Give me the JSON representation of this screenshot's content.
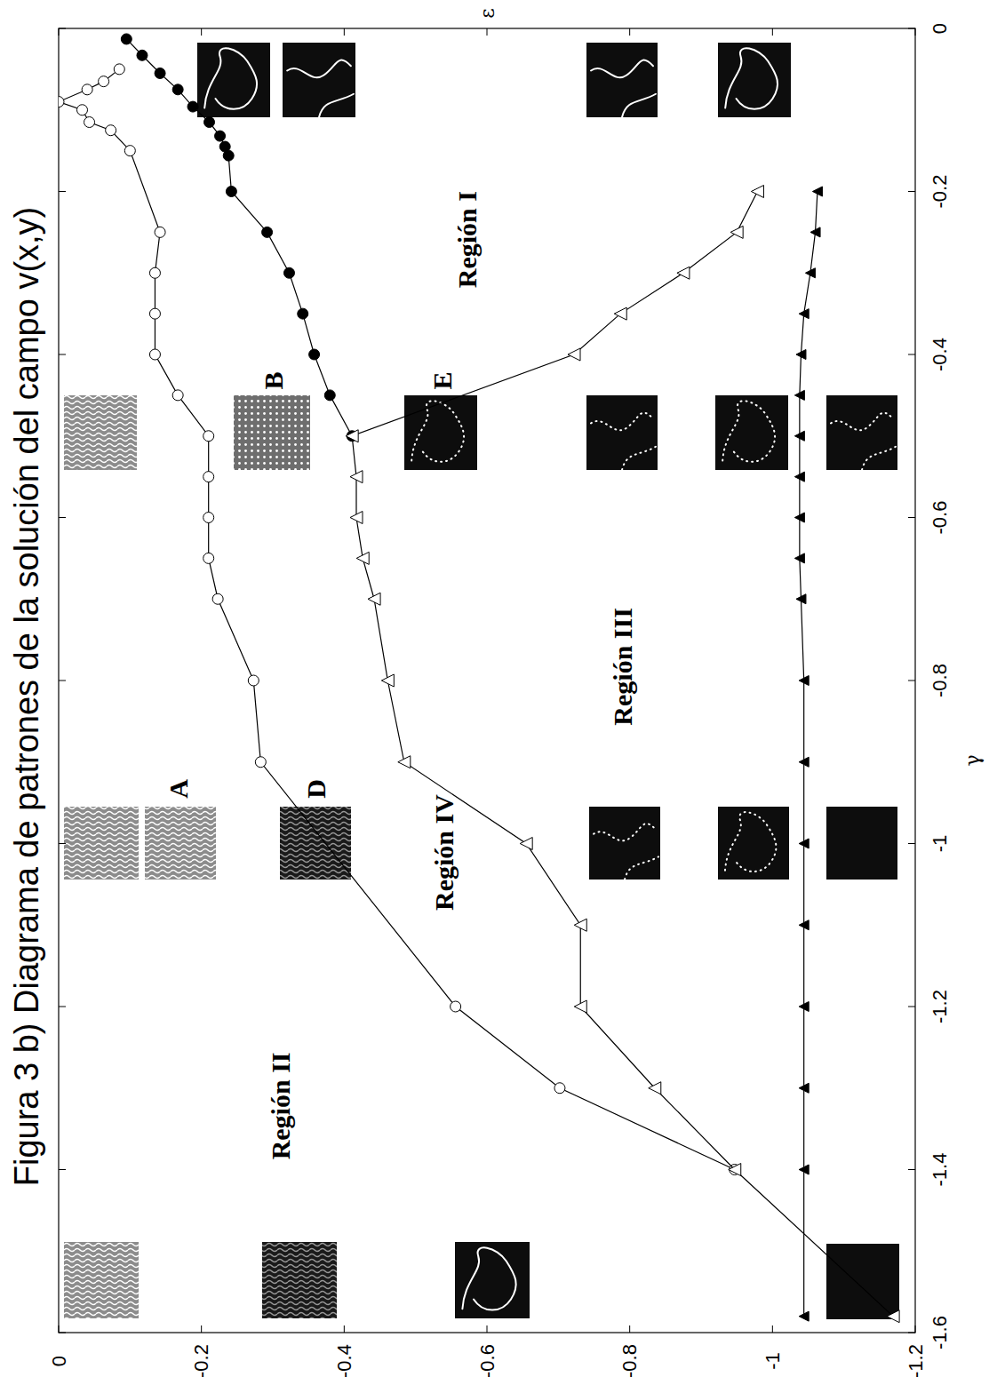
{
  "chart_data": {
    "type": "line",
    "title": "Figura 3 b) Diagrama de patrones de la solución  del campo v(x,y)",
    "x_label": "γ",
    "y_label": "ε",
    "xlim": [
      -1.6,
      0
    ],
    "ylim": [
      -1.2,
      0
    ],
    "xticks": [
      -1.6,
      -1.4,
      -1.2,
      -1,
      -0.8,
      -0.6,
      -0.4,
      -0.2,
      0
    ],
    "yticks": [
      -1.2,
      -1,
      -0.8,
      -0.6,
      -0.4,
      -0.2,
      0
    ],
    "series": [
      {
        "color": "#000000",
        "marker": "open-circle",
        "line_style": "solid",
        "x": [
          -0.05,
          -0.065,
          -0.075,
          -0.09,
          -0.1,
          -0.115,
          -0.125,
          -0.15,
          -0.25,
          -0.3,
          -0.35,
          -0.4,
          -0.45,
          -0.5,
          -0.55,
          -0.6,
          -0.65,
          -0.7,
          -0.8,
          -0.9,
          -1.2,
          -1.3,
          -1.4
        ],
        "values": [
          -0.085,
          -0.063,
          -0.04,
          0,
          -0.033,
          -0.043,
          -0.073,
          -0.1,
          -0.142,
          -0.135,
          -0.135,
          -0.135,
          -0.167,
          -0.21,
          -0.21,
          -0.21,
          -0.21,
          -0.223,
          -0.273,
          -0.283,
          -0.556,
          -0.702,
          -0.947
        ]
      },
      {
        "color": "#000000",
        "marker": "filled-circle",
        "line_style": "solid",
        "x": [
          -0.013,
          -0.033,
          -0.055,
          -0.075,
          -0.096,
          -0.115,
          -0.132,
          -0.145,
          -0.156,
          -0.2,
          -0.25,
          -0.3,
          -0.35,
          -0.4,
          -0.45,
          -0.5
        ],
        "values": [
          -0.095,
          -0.117,
          -0.142,
          -0.167,
          -0.188,
          -0.211,
          -0.226,
          -0.233,
          -0.238,
          -0.242,
          -0.292,
          -0.323,
          -0.342,
          -0.358,
          -0.38,
          -0.411
        ]
      },
      {
        "color": "#000000",
        "marker": "open-triangle",
        "line_style": "solid",
        "x": [
          -0.2,
          -0.25,
          -0.3,
          -0.35,
          -0.4,
          -0.5,
          -0.55,
          -0.6,
          -0.65,
          -0.7,
          -0.8,
          -0.9,
          -1,
          -1.1,
          -1.2,
          -1.3,
          -1.4,
          -1.58
        ],
        "values": [
          -0.979,
          -0.95,
          -0.875,
          -0.787,
          -0.722,
          -0.411,
          -0.417,
          -0.417,
          -0.426,
          -0.442,
          -0.461,
          -0.484,
          -0.655,
          -0.731,
          -0.731,
          -0.835,
          -0.947,
          -1.169
        ]
      },
      {
        "color": "#000000",
        "marker": "filled-triangle",
        "line_style": "solid",
        "x": [
          -0.2,
          -0.25,
          -0.3,
          -0.35,
          -0.4,
          -0.45,
          -0.5,
          -0.55,
          -0.6,
          -0.65,
          -0.7,
          -0.8,
          -0.9,
          -1,
          -1.1,
          -1.2,
          -1.3,
          -1.4,
          -1.58
        ],
        "values": [
          -1.063,
          -1.06,
          -1.053,
          -1.044,
          -1.04,
          -1.038,
          -1.038,
          -1.038,
          -1.038,
          -1.038,
          -1.04,
          -1.044,
          -1.044,
          -1.044,
          -1.044,
          -1.044,
          -1.044,
          -1.044,
          -1.044
        ]
      }
    ],
    "annotations": [
      {
        "text": "Región I",
        "x": -0.259,
        "y": -0.572
      },
      {
        "text": "Región II",
        "x": -1.322,
        "y": -0.31
      },
      {
        "text": "Región III",
        "x": -0.783,
        "y": -0.79
      },
      {
        "text": "Región IV",
        "x": -1.011,
        "y": -0.54
      },
      {
        "text": "A",
        "x": -0.933,
        "y": -0.167
      },
      {
        "text": "B",
        "x": -0.432,
        "y": -0.301
      },
      {
        "text": "D",
        "x": -0.933,
        "y": -0.36
      },
      {
        "text": "E",
        "x": -0.432,
        "y": -0.537
      }
    ]
  }
}
